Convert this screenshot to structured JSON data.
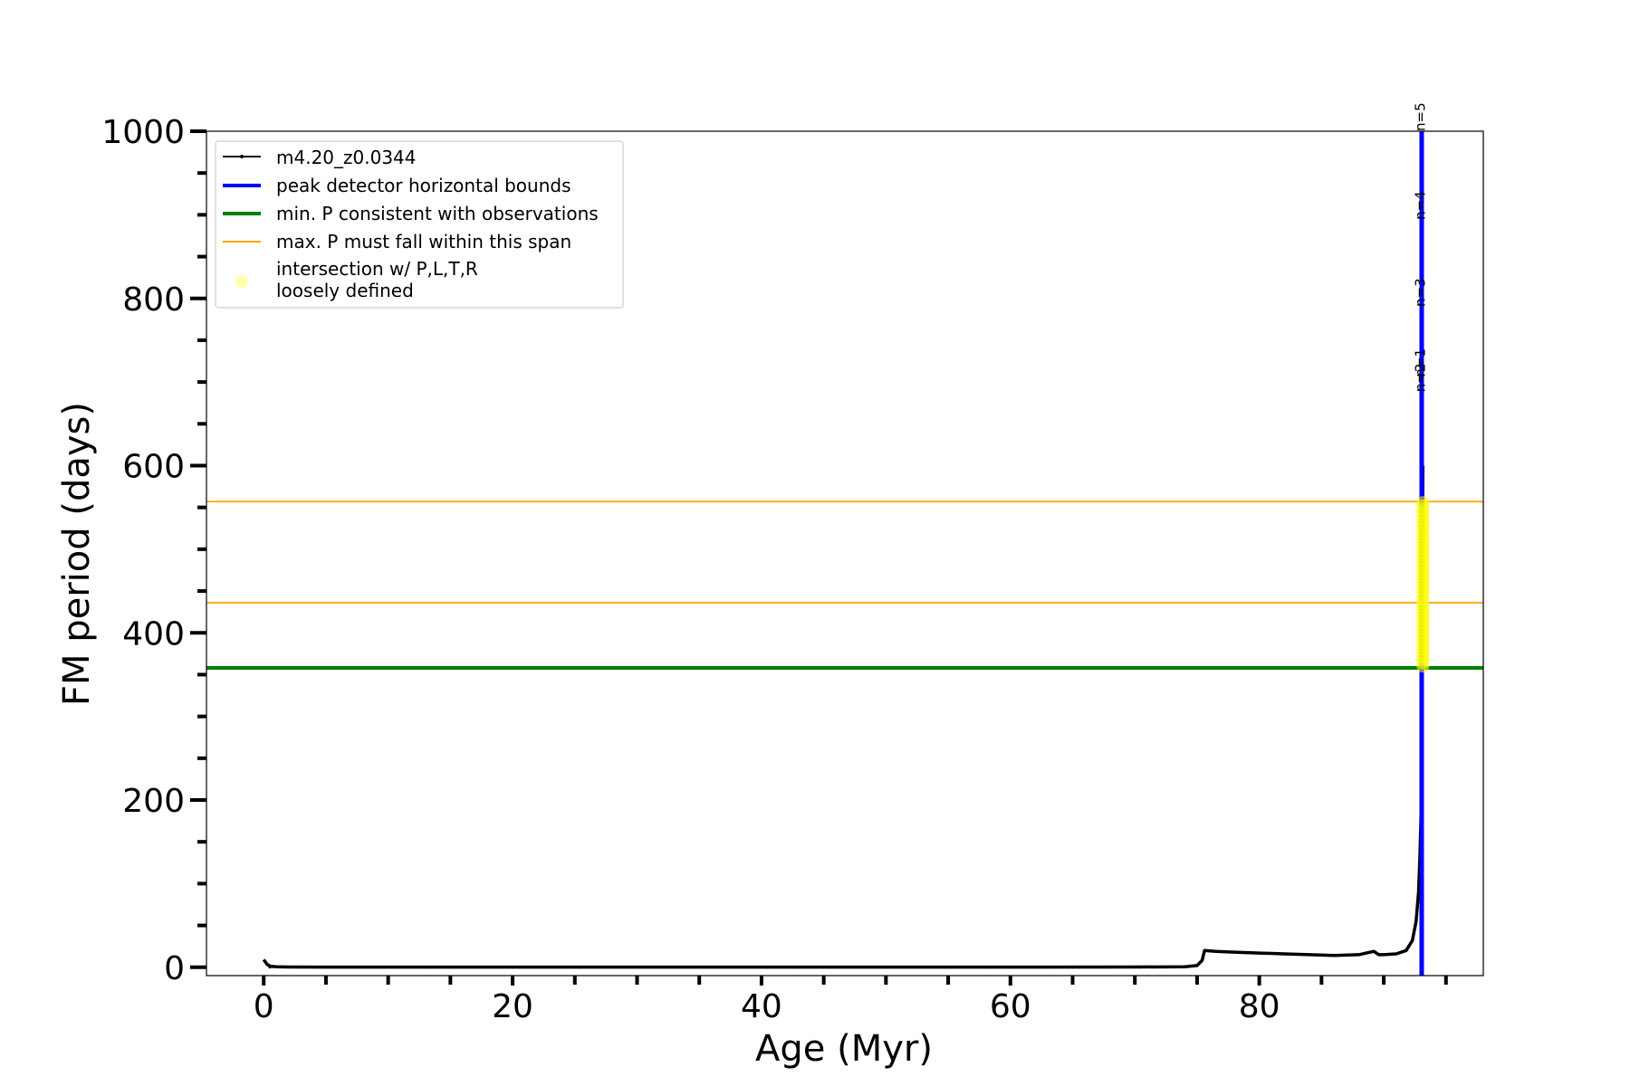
{
  "chart_data": {
    "type": "line",
    "xlabel": "Age (Myr)",
    "ylabel": "FM period (days)",
    "xlim": [
      -4.6,
      98.0
    ],
    "ylim": [
      -10,
      1000
    ],
    "x_ticks_major": [
      0,
      20,
      40,
      60,
      80
    ],
    "x_ticks_minor": [
      5,
      10,
      15,
      25,
      30,
      35,
      45,
      50,
      55,
      65,
      70,
      75,
      85,
      90,
      95
    ],
    "y_ticks_major": [
      0,
      200,
      400,
      600,
      800,
      1000
    ],
    "y_ticks_minor": [
      50,
      100,
      150,
      250,
      300,
      350,
      450,
      500,
      550,
      650,
      700,
      750,
      850,
      900,
      950
    ],
    "grid": false,
    "legend_position": "top-left",
    "legend": [
      {
        "label": "m4.20_z0.0344",
        "kind": "line-marker",
        "color": "#000000"
      },
      {
        "label": "peak detector horizontal bounds",
        "kind": "line",
        "color": "#0000ff"
      },
      {
        "label": "min. P consistent with observations",
        "kind": "line",
        "color": "#008000"
      },
      {
        "label": "max. P must fall within this span",
        "kind": "line",
        "color": "#ffa500"
      },
      {
        "label": "intersection w/ P,L,T,R",
        "label2": "loosely defined",
        "kind": "dot",
        "color": "#ffffaa"
      }
    ],
    "series": [
      {
        "name": "m4.20_z0.0344",
        "color": "#000000",
        "x": [
          0.0,
          0.1,
          0.3,
          0.6,
          1.0,
          2,
          5,
          10,
          20,
          30,
          40,
          50,
          60,
          70,
          74,
          75.0,
          75.4,
          75.6,
          76.5,
          78,
          80,
          82,
          84,
          86,
          88,
          89.2,
          89.6,
          90.0,
          91.0,
          91.8,
          92.3,
          92.6,
          92.8,
          92.9,
          93.0,
          93.05,
          93.1,
          93.15
        ],
        "y": [
          9,
          7,
          3,
          1,
          0.5,
          0.3,
          0.2,
          0.2,
          0.2,
          0.2,
          0.2,
          0.2,
          0.2,
          0.3,
          0.5,
          2,
          8,
          20,
          19,
          18,
          17,
          16,
          15,
          14,
          15,
          19,
          15,
          15,
          16,
          20,
          32,
          55,
          90,
          130,
          185,
          300,
          450,
          600
        ]
      }
    ],
    "vertical_lines": [
      {
        "name": "peak detector horizontal bounds",
        "x": 93.05,
        "color": "#0000ff"
      }
    ],
    "horizontal_lines": [
      {
        "name": "min. P consistent with observations",
        "y": 358,
        "color": "#008000"
      },
      {
        "name": "max. P must fall within this span",
        "y": 557,
        "color": "#ffa500"
      },
      {
        "name": "max. P must fall within this span",
        "y": 436,
        "color": "#ffa500"
      }
    ],
    "intersection_points": {
      "name": "intersection w/ P,L,T,R loosely defined",
      "color": "#ffff00",
      "x": 93.15,
      "y_range": [
        360,
        558
      ]
    },
    "mode_annotations": [
      {
        "label": "n=1",
        "x": 93.3,
        "y": 706
      },
      {
        "label": "n=2",
        "x": 93.3,
        "y": 688
      },
      {
        "label": "n=3",
        "x": 93.3,
        "y": 790
      },
      {
        "label": "n=4",
        "x": 93.3,
        "y": 894
      },
      {
        "label": "n=5",
        "x": 93.3,
        "y": 1000
      }
    ]
  }
}
